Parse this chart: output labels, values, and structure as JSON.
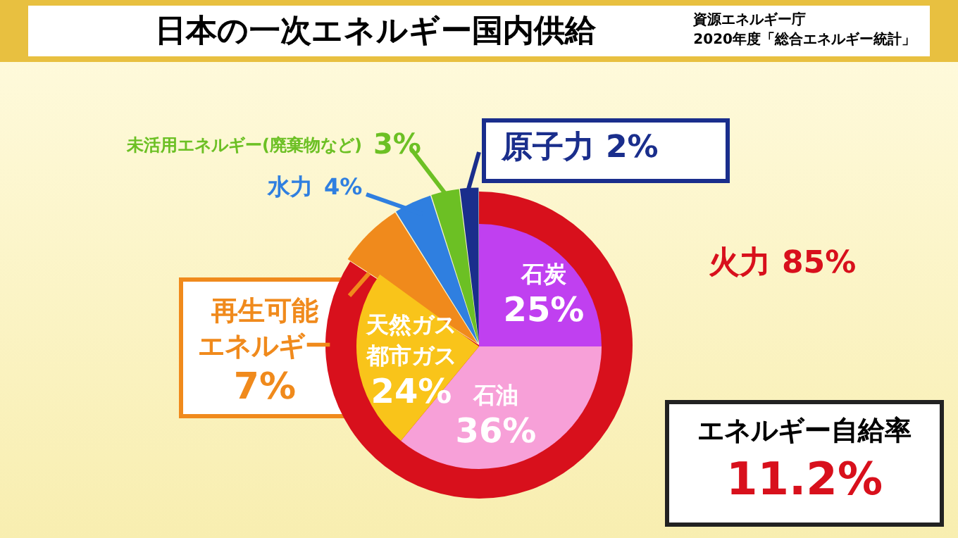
{
  "chart_data": [
    {
      "type": "pie",
      "title": "日本の一次エネルギー国内供給",
      "annotations": [
        "資源エネルギー庁",
        "2020年度「総合エネルギー統計」"
      ],
      "categories": [
        "火力",
        "再生可能エネルギー",
        "水力",
        "未活用エネルギー(廃棄物など)",
        "原子力"
      ],
      "values": [
        85,
        7,
        4,
        3,
        2
      ],
      "value_labels": [
        "85%",
        "7%",
        "4%",
        "3%",
        "2%"
      ],
      "colors": [
        "#d8101c",
        "#f08a1c",
        "#2f7fe0",
        "#6cc024",
        "#1a2e8c"
      ]
    },
    {
      "type": "pie",
      "categories": [
        "石炭",
        "石油",
        "天然ガス都市ガス"
      ],
      "values": [
        25,
        36,
        24
      ],
      "value_labels": [
        "25%",
        "36%",
        "24%"
      ],
      "colors": [
        "#c040f0",
        "#f7a0d8",
        "#f9c41a"
      ]
    },
    {
      "type": "other",
      "title": "エネルギー自給率",
      "annotations": [
        "11.2%"
      ]
    }
  ]
}
